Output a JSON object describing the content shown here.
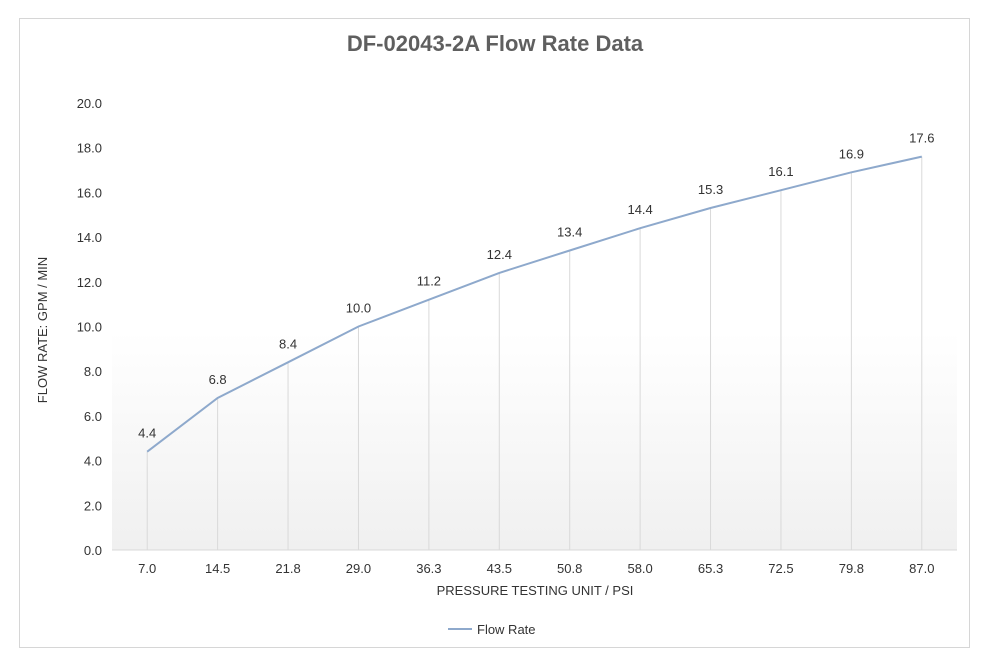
{
  "chart_data": {
    "type": "line",
    "title": "DF-02043-2A Flow Rate Data",
    "xlabel": "PRESSURE TESTING UNIT / PSI",
    "ylabel": "FLOW RATE: GPM / MIN",
    "categories": [
      "7.0",
      "14.5",
      "21.8",
      "29.0",
      "36.3",
      "43.5",
      "50.8",
      "58.0",
      "65.3",
      "72.5",
      "79.8",
      "87.0"
    ],
    "series": [
      {
        "name": "Flow Rate",
        "values": [
          4.4,
          6.8,
          8.4,
          10.0,
          11.2,
          12.4,
          13.4,
          14.4,
          15.3,
          16.1,
          16.9,
          17.6
        ],
        "data_labels": [
          "4.4",
          "6.8",
          "8.4",
          "10.0",
          "11.2",
          "12.4",
          "13.4",
          "14.4",
          "15.3",
          "16.1",
          "16.9",
          "17.6"
        ]
      }
    ],
    "yticks": [
      "0.0",
      "2.0",
      "4.0",
      "6.0",
      "8.0",
      "10.0",
      "12.0",
      "14.0",
      "16.0",
      "18.0",
      "20.0"
    ],
    "ylim": [
      0,
      20
    ],
    "grid": "vertical",
    "legend_position": "bottom",
    "colors": {
      "line": "#8ea9cc",
      "grid": "#d9d9d9",
      "text": "#333333",
      "title": "#5f5f5f"
    }
  }
}
